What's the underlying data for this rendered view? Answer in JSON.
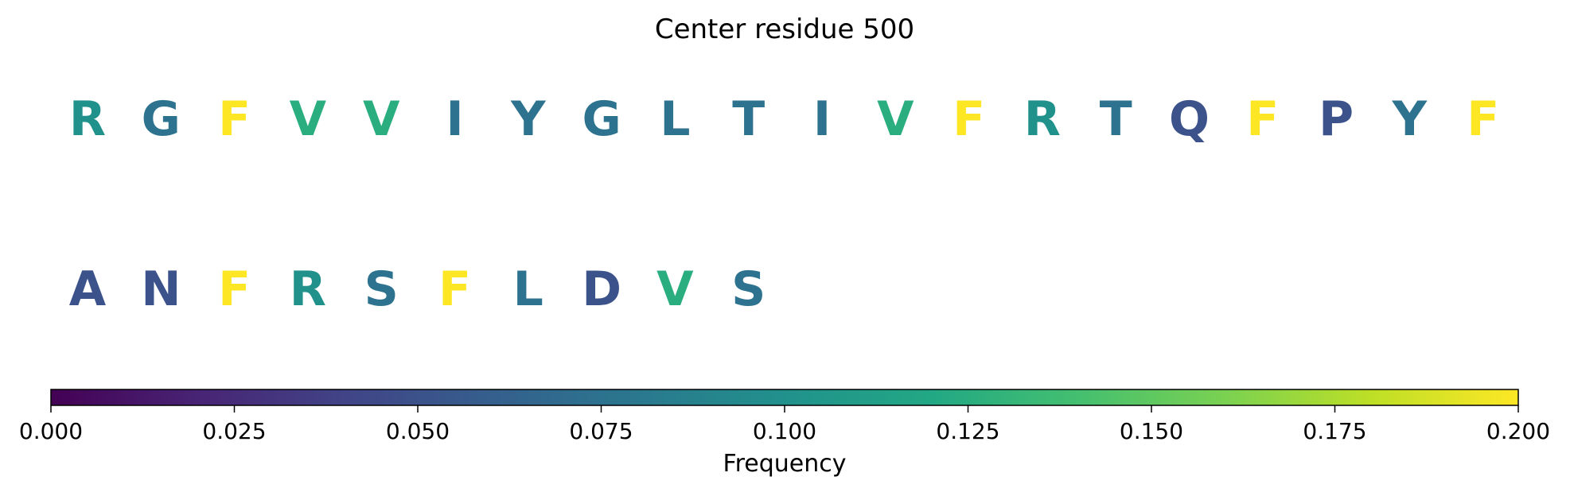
{
  "chart_data": {
    "type": "table",
    "title": "Center residue 500",
    "rows": [
      {
        "residues": [
          "R",
          "G",
          "F",
          "V",
          "V",
          "I",
          "Y",
          "G",
          "L",
          "T",
          "I",
          "V",
          "F",
          "R",
          "T",
          "Q",
          "F",
          "P",
          "Y",
          "F"
        ],
        "frequencies": [
          0.1,
          0.075,
          0.2,
          0.125,
          0.125,
          0.075,
          0.075,
          0.075,
          0.075,
          0.075,
          0.075,
          0.125,
          0.2,
          0.1,
          0.075,
          0.05,
          0.2,
          0.05,
          0.075,
          0.2
        ]
      },
      {
        "residues": [
          "A",
          "N",
          "F",
          "R",
          "S",
          "F",
          "L",
          "D",
          "V",
          "S"
        ],
        "frequencies": [
          0.05,
          0.05,
          0.2,
          0.1,
          0.075,
          0.2,
          0.075,
          0.05,
          0.125,
          0.075
        ]
      }
    ],
    "colorbar": {
      "label": "Frequency",
      "colormap": "viridis",
      "range": [
        0,
        0.2
      ],
      "ticks": [
        0,
        0.025,
        0.05,
        0.075,
        0.1,
        0.125,
        0.15,
        0.175,
        0.2
      ],
      "tick_labels": [
        "0.000",
        "0.025",
        "0.050",
        "0.075",
        "0.100",
        "0.125",
        "0.150",
        "0.175",
        "0.200"
      ]
    }
  }
}
